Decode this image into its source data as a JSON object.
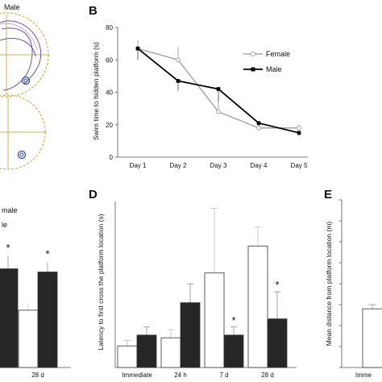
{
  "panels": {
    "a": {
      "legend_fragment": "Male"
    },
    "b": {
      "letter": "B"
    },
    "c": {
      "legend_line1": "male",
      "legend_line2": "le",
      "star": "*",
      "xtick": "28 d"
    },
    "d": {
      "letter": "D"
    },
    "e": {
      "letter": "E",
      "xtick_fragment": "Imme"
    }
  },
  "chart_data": [
    {
      "panel": "B",
      "type": "line",
      "categories": [
        "Day 1",
        "Day 2",
        "Day 3",
        "Day 4",
        "Day 5"
      ],
      "ylabel": "Swim time to hidden platform (s)",
      "ylim": [
        0,
        80
      ],
      "yticks": [
        "0",
        "20",
        "40",
        "60",
        "80"
      ],
      "legend_position": "right",
      "series": [
        {
          "name": "Female",
          "values": [
            67,
            60,
            28,
            18,
            18
          ],
          "err": [
            5,
            8,
            6,
            2,
            2
          ],
          "color": "#a6a6a6",
          "marker": "open-circle"
        },
        {
          "name": "Male",
          "values": [
            67,
            47,
            42,
            21,
            15
          ],
          "err": [
            7,
            6,
            8,
            2,
            2
          ],
          "color": "#000000",
          "marker": "filled-square"
        }
      ]
    },
    {
      "panel": "D",
      "type": "bar",
      "categories": [
        "Immediate",
        "24 h",
        "7 d",
        "28 d"
      ],
      "ylabel": "Latency to first cross the platform location (s)",
      "series": [
        {
          "values": [
            8,
            11,
            35,
            45
          ],
          "err": [
            2,
            3,
            24,
            7
          ],
          "color": "#ffffff"
        },
        {
          "values": [
            12,
            24,
            12,
            18
          ],
          "err": [
            3,
            7,
            3,
            10
          ],
          "color": "#262626"
        }
      ],
      "annotations": [
        {
          "category": "7 d",
          "text": "*"
        },
        {
          "category": "28 d",
          "text": "*"
        }
      ]
    },
    {
      "panel": "C",
      "type": "bar",
      "categories": [
        "",
        "28 d"
      ],
      "series": [
        {
          "values": [
            null,
            18
          ],
          "err": [
            null,
            2
          ],
          "color": "#ffffff"
        },
        {
          "values": [
            31,
            30
          ],
          "err": [
            4,
            3
          ],
          "color": "#262626"
        }
      ],
      "annotations": [
        {
          "category_index": 0,
          "text": "*"
        },
        {
          "category_index": 1,
          "text": "*"
        }
      ]
    },
    {
      "panel": "E",
      "type": "bar",
      "ylabel": "Mean distance from platform location (m)",
      "ylim": [
        0,
        0.8
      ],
      "yticks": [
        "0",
        "0.1",
        "0.2",
        "0.3",
        "0.4",
        "0.5",
        "0.6",
        "0.7",
        "0.8"
      ],
      "series": [
        {
          "values": [
            0.28
          ],
          "err": [
            0.02
          ],
          "color": "#ffffff"
        }
      ]
    }
  ]
}
